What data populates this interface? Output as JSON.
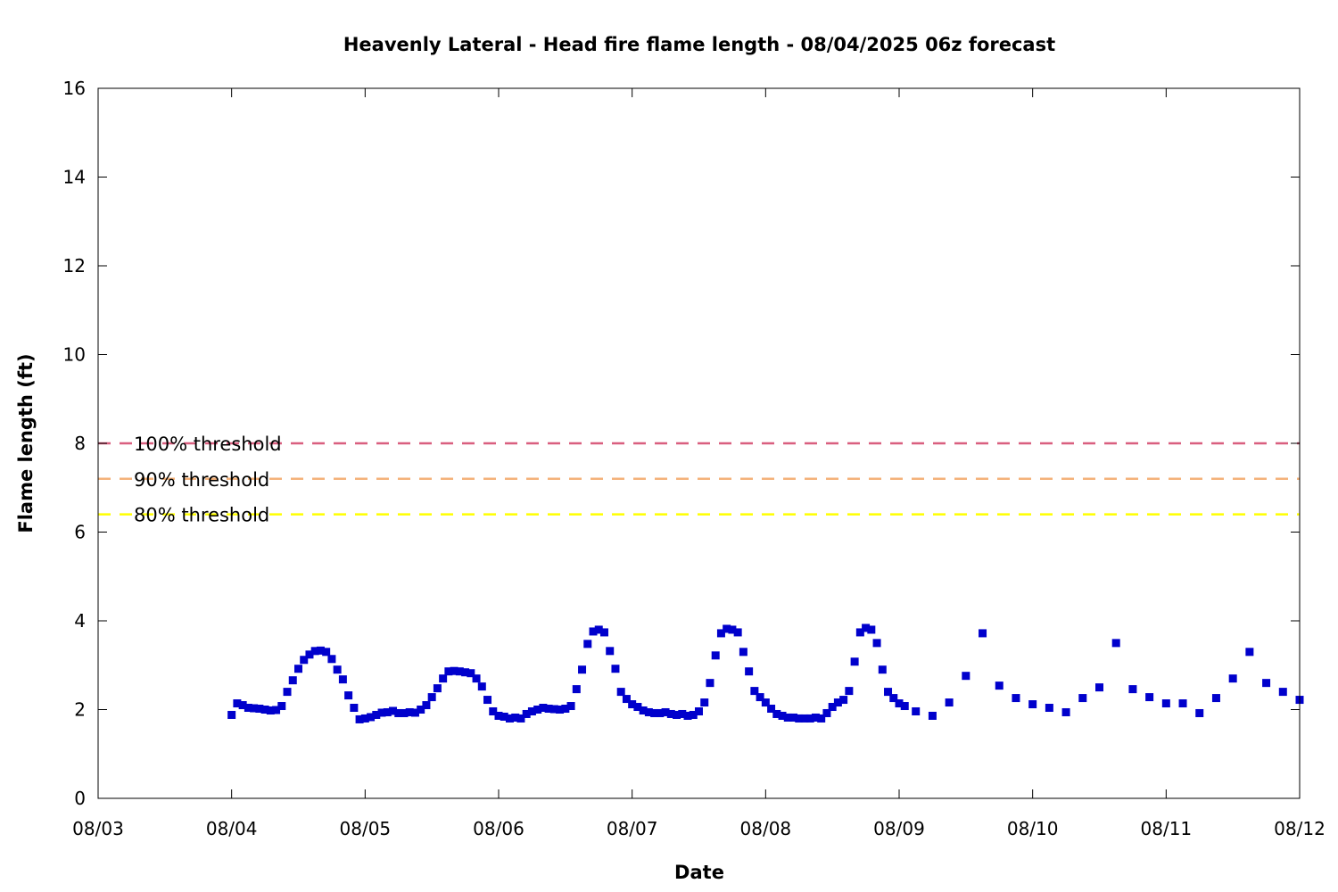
{
  "chart_data": {
    "type": "scatter",
    "title": "Heavenly Lateral - Head fire flame length - 08/04/2025 06z forecast",
    "xlabel": "Date",
    "ylabel": "Flame length (ft)",
    "xlim": [
      "08/03",
      "08/12"
    ],
    "ylim": [
      0,
      16
    ],
    "x_ticks": [
      "08/03",
      "08/04",
      "08/05",
      "08/06",
      "08/07",
      "08/08",
      "08/09",
      "08/10",
      "08/11",
      "08/12"
    ],
    "y_ticks": [
      0,
      2,
      4,
      6,
      8,
      10,
      12,
      14,
      16
    ],
    "grid": false,
    "legend_position": "left",
    "thresholds": [
      {
        "name": "100% threshold",
        "value": 8.0,
        "color": "#d95f7f"
      },
      {
        "name": "90% threshold",
        "value": 7.2,
        "color": "#f4b27a"
      },
      {
        "name": "80% threshold",
        "value": 6.4,
        "color": "#ffff00"
      }
    ],
    "series": [
      {
        "color": "#0000cc",
        "points": [
          [
            "08/04 00:00",
            1.88
          ],
          [
            "08/04 01:00",
            2.14
          ],
          [
            "08/04 02:00",
            2.1
          ],
          [
            "08/04 03:00",
            2.04
          ],
          [
            "08/04 04:00",
            2.03
          ],
          [
            "08/04 05:00",
            2.02
          ],
          [
            "08/04 06:00",
            2.0
          ],
          [
            "08/04 07:00",
            1.98
          ],
          [
            "08/04 08:00",
            1.99
          ],
          [
            "08/04 09:00",
            2.08
          ],
          [
            "08/04 10:00",
            2.4
          ],
          [
            "08/04 11:00",
            2.66
          ],
          [
            "08/04 12:00",
            2.92
          ],
          [
            "08/04 13:00",
            3.12
          ],
          [
            "08/04 14:00",
            3.24
          ],
          [
            "08/04 15:00",
            3.32
          ],
          [
            "08/04 16:00",
            3.33
          ],
          [
            "08/04 17:00",
            3.3
          ],
          [
            "08/04 18:00",
            3.14
          ],
          [
            "08/04 19:00",
            2.9
          ],
          [
            "08/04 20:00",
            2.68
          ],
          [
            "08/04 21:00",
            2.32
          ],
          [
            "08/04 22:00",
            2.04
          ],
          [
            "08/04 23:00",
            1.78
          ],
          [
            "08/05 00:00",
            1.8
          ],
          [
            "08/05 01:00",
            1.83
          ],
          [
            "08/05 02:00",
            1.88
          ],
          [
            "08/05 03:00",
            1.93
          ],
          [
            "08/05 04:00",
            1.94
          ],
          [
            "08/05 05:00",
            1.97
          ],
          [
            "08/05 06:00",
            1.92
          ],
          [
            "08/05 07:00",
            1.92
          ],
          [
            "08/05 08:00",
            1.94
          ],
          [
            "08/05 09:00",
            1.93
          ],
          [
            "08/05 10:00",
            2.0
          ],
          [
            "08/05 11:00",
            2.1
          ],
          [
            "08/05 12:00",
            2.28
          ],
          [
            "08/05 13:00",
            2.48
          ],
          [
            "08/05 14:00",
            2.7
          ],
          [
            "08/05 15:00",
            2.86
          ],
          [
            "08/05 16:00",
            2.87
          ],
          [
            "08/05 17:00",
            2.86
          ],
          [
            "08/05 18:00",
            2.84
          ],
          [
            "08/05 19:00",
            2.82
          ],
          [
            "08/05 20:00",
            2.7
          ],
          [
            "08/05 21:00",
            2.52
          ],
          [
            "08/05 22:00",
            2.22
          ],
          [
            "08/05 23:00",
            1.96
          ],
          [
            "08/06 00:00",
            1.86
          ],
          [
            "08/06 01:00",
            1.84
          ],
          [
            "08/06 02:00",
            1.8
          ],
          [
            "08/06 03:00",
            1.82
          ],
          [
            "08/06 04:00",
            1.8
          ],
          [
            "08/06 05:00",
            1.9
          ],
          [
            "08/06 06:00",
            1.96
          ],
          [
            "08/06 07:00",
            2.0
          ],
          [
            "08/06 08:00",
            2.04
          ],
          [
            "08/06 09:00",
            2.02
          ],
          [
            "08/06 10:00",
            2.01
          ],
          [
            "08/06 11:00",
            2.0
          ],
          [
            "08/06 12:00",
            2.02
          ],
          [
            "08/06 13:00",
            2.08
          ],
          [
            "08/06 14:00",
            2.46
          ],
          [
            "08/06 15:00",
            2.9
          ],
          [
            "08/06 16:00",
            3.48
          ],
          [
            "08/06 17:00",
            3.76
          ],
          [
            "08/06 18:00",
            3.8
          ],
          [
            "08/06 19:00",
            3.74
          ],
          [
            "08/06 20:00",
            3.32
          ],
          [
            "08/06 21:00",
            2.92
          ],
          [
            "08/06 22:00",
            2.4
          ],
          [
            "08/06 23:00",
            2.24
          ],
          [
            "08/07 00:00",
            2.12
          ],
          [
            "08/07 01:00",
            2.06
          ],
          [
            "08/07 02:00",
            1.98
          ],
          [
            "08/07 03:00",
            1.94
          ],
          [
            "08/07 04:00",
            1.92
          ],
          [
            "08/07 05:00",
            1.92
          ],
          [
            "08/07 06:00",
            1.94
          ],
          [
            "08/07 07:00",
            1.9
          ],
          [
            "08/07 08:00",
            1.88
          ],
          [
            "08/07 09:00",
            1.9
          ],
          [
            "08/07 10:00",
            1.86
          ],
          [
            "08/07 11:00",
            1.88
          ],
          [
            "08/07 12:00",
            1.96
          ],
          [
            "08/07 13:00",
            2.16
          ],
          [
            "08/07 14:00",
            2.6
          ],
          [
            "08/07 15:00",
            3.22
          ],
          [
            "08/07 16:00",
            3.72
          ],
          [
            "08/07 17:00",
            3.82
          ],
          [
            "08/07 18:00",
            3.8
          ],
          [
            "08/07 19:00",
            3.74
          ],
          [
            "08/07 20:00",
            3.3
          ],
          [
            "08/07 21:00",
            2.86
          ],
          [
            "08/07 22:00",
            2.42
          ],
          [
            "08/07 23:00",
            2.28
          ],
          [
            "08/08 00:00",
            2.16
          ],
          [
            "08/08 01:00",
            2.02
          ],
          [
            "08/08 02:00",
            1.9
          ],
          [
            "08/08 03:00",
            1.86
          ],
          [
            "08/08 04:00",
            1.82
          ],
          [
            "08/08 05:00",
            1.82
          ],
          [
            "08/08 06:00",
            1.8
          ],
          [
            "08/08 07:00",
            1.8
          ],
          [
            "08/08 08:00",
            1.8
          ],
          [
            "08/08 09:00",
            1.82
          ],
          [
            "08/08 10:00",
            1.8
          ],
          [
            "08/08 11:00",
            1.92
          ],
          [
            "08/08 12:00",
            2.06
          ],
          [
            "08/08 13:00",
            2.16
          ],
          [
            "08/08 14:00",
            2.22
          ],
          [
            "08/08 15:00",
            2.42
          ],
          [
            "08/08 16:00",
            3.08
          ],
          [
            "08/08 17:00",
            3.74
          ],
          [
            "08/08 18:00",
            3.84
          ],
          [
            "08/08 19:00",
            3.8
          ],
          [
            "08/08 20:00",
            3.5
          ],
          [
            "08/08 21:00",
            2.9
          ],
          [
            "08/08 22:00",
            2.4
          ],
          [
            "08/08 23:00",
            2.26
          ],
          [
            "08/09 00:00",
            2.14
          ],
          [
            "08/09 01:00",
            2.08
          ],
          [
            "08/09 03:00",
            1.96
          ],
          [
            "08/09 06:00",
            1.86
          ],
          [
            "08/09 09:00",
            2.16
          ],
          [
            "08/09 12:00",
            2.76
          ],
          [
            "08/09 15:00",
            3.72
          ],
          [
            "08/09 18:00",
            2.54
          ],
          [
            "08/09 21:00",
            2.26
          ],
          [
            "08/10 00:00",
            2.12
          ],
          [
            "08/10 03:00",
            2.04
          ],
          [
            "08/10 06:00",
            1.94
          ],
          [
            "08/10 09:00",
            2.26
          ],
          [
            "08/10 12:00",
            2.5
          ],
          [
            "08/10 15:00",
            3.5
          ],
          [
            "08/10 18:00",
            2.46
          ],
          [
            "08/10 21:00",
            2.28
          ],
          [
            "08/11 00:00",
            2.14
          ],
          [
            "08/11 03:00",
            2.14
          ],
          [
            "08/11 06:00",
            1.92
          ],
          [
            "08/11 09:00",
            2.26
          ],
          [
            "08/11 12:00",
            2.7
          ],
          [
            "08/11 15:00",
            3.3
          ],
          [
            "08/11 18:00",
            2.6
          ],
          [
            "08/11 21:00",
            2.4
          ],
          [
            "08/12 00:00",
            2.22
          ]
        ]
      }
    ]
  }
}
